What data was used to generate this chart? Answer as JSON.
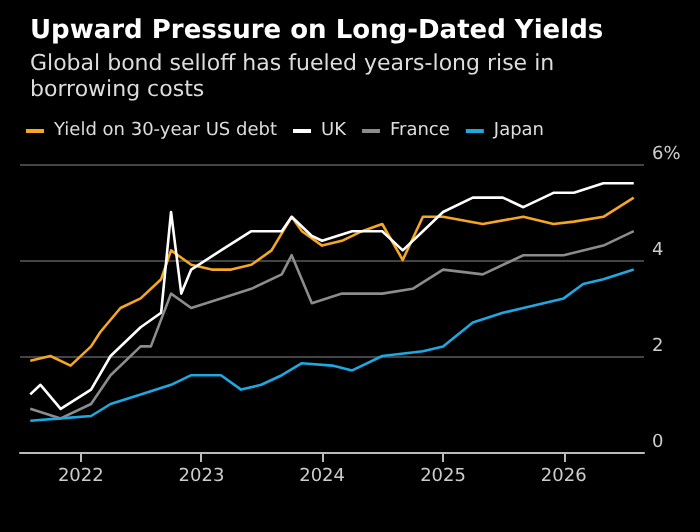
{
  "chart_data": {
    "type": "line",
    "title": "Upward Pressure on Long-Dated Yields",
    "subtitle": "Global bond selloff has fueled years-long rise in borrowing costs",
    "xlim": [
      "2021-07",
      "2026-09"
    ],
    "xticks": [
      "2022",
      "2023",
      "2024",
      "2025",
      "2026"
    ],
    "ylim": [
      0,
      6
    ],
    "yticks": [
      0,
      2,
      4,
      {
        "value": 6,
        "label": "6%"
      }
    ],
    "grid": "y",
    "legend": "top left",
    "series": [
      {
        "name": "Yield on 30-year US debt",
        "color": "#f5a623",
        "x": [
          "2021-08",
          "2021-10",
          "2021-12",
          "2022-02",
          "2022-03",
          "2022-05",
          "2022-07",
          "2022-09",
          "2022-10",
          "2022-12",
          "2023-02",
          "2023-04",
          "2023-06",
          "2023-08",
          "2023-10",
          "2023-11",
          "2024-01",
          "2024-03",
          "2024-05",
          "2024-07",
          "2024-09",
          "2024-11",
          "2025-01",
          "2025-05",
          "2025-09",
          "2025-12",
          "2026-02",
          "2026-05",
          "2026-08"
        ],
        "values": [
          1.9,
          2.0,
          1.8,
          2.2,
          2.5,
          3.0,
          3.2,
          3.6,
          4.2,
          3.9,
          3.8,
          3.8,
          3.9,
          4.2,
          4.9,
          4.6,
          4.3,
          4.4,
          4.6,
          4.75,
          4.0,
          4.9,
          4.9,
          4.75,
          4.9,
          4.75,
          4.8,
          4.9,
          5.3
        ]
      },
      {
        "name": "UK",
        "color": "#ffffff",
        "x": [
          "2021-08",
          "2021-09",
          "2021-11",
          "2022-02",
          "2022-04",
          "2022-07",
          "2022-09",
          "2022-10",
          "2022-11",
          "2022-12",
          "2023-03",
          "2023-06",
          "2023-09",
          "2023-10",
          "2023-12",
          "2024-01",
          "2024-04",
          "2024-07",
          "2024-09",
          "2024-11",
          "2025-01",
          "2025-04",
          "2025-07",
          "2025-09",
          "2025-12",
          "2026-02",
          "2026-05",
          "2026-08"
        ],
        "values": [
          1.2,
          1.4,
          0.9,
          1.3,
          2.0,
          2.6,
          2.9,
          5.0,
          3.3,
          3.8,
          4.2,
          4.6,
          4.6,
          4.9,
          4.5,
          4.4,
          4.6,
          4.6,
          4.2,
          4.6,
          5.0,
          5.3,
          5.3,
          5.1,
          5.4,
          5.4,
          5.6,
          5.6
        ]
      },
      {
        "name": "France",
        "color": "#8c8c8c",
        "x": [
          "2021-08",
          "2021-11",
          "2022-02",
          "2022-04",
          "2022-07",
          "2022-08",
          "2022-10",
          "2022-12",
          "2023-03",
          "2023-06",
          "2023-09",
          "2023-10",
          "2023-12",
          "2024-03",
          "2024-07",
          "2024-10",
          "2025-01",
          "2025-05",
          "2025-09",
          "2026-01",
          "2026-05",
          "2026-08"
        ],
        "values": [
          0.9,
          0.7,
          1.0,
          1.6,
          2.2,
          2.2,
          3.3,
          3.0,
          3.2,
          3.4,
          3.7,
          4.1,
          3.1,
          3.3,
          3.3,
          3.4,
          3.8,
          3.7,
          4.1,
          4.1,
          4.3,
          4.6
        ]
      },
      {
        "name": "Japan",
        "color": "#1fa8e0",
        "x": [
          "2021-08",
          "2021-11",
          "2022-02",
          "2022-04",
          "2022-07",
          "2022-10",
          "2022-12",
          "2023-03",
          "2023-05",
          "2023-07",
          "2023-09",
          "2023-11",
          "2024-02",
          "2024-04",
          "2024-07",
          "2024-11",
          "2025-01",
          "2025-04",
          "2025-07",
          "2025-09",
          "2026-01",
          "2026-03",
          "2026-05",
          "2026-08"
        ],
        "values": [
          0.65,
          0.7,
          0.75,
          1.0,
          1.2,
          1.4,
          1.6,
          1.6,
          1.3,
          1.4,
          1.6,
          1.85,
          1.8,
          1.7,
          2.0,
          2.1,
          2.2,
          2.7,
          2.9,
          3.0,
          3.2,
          3.5,
          3.6,
          3.8
        ]
      }
    ]
  }
}
